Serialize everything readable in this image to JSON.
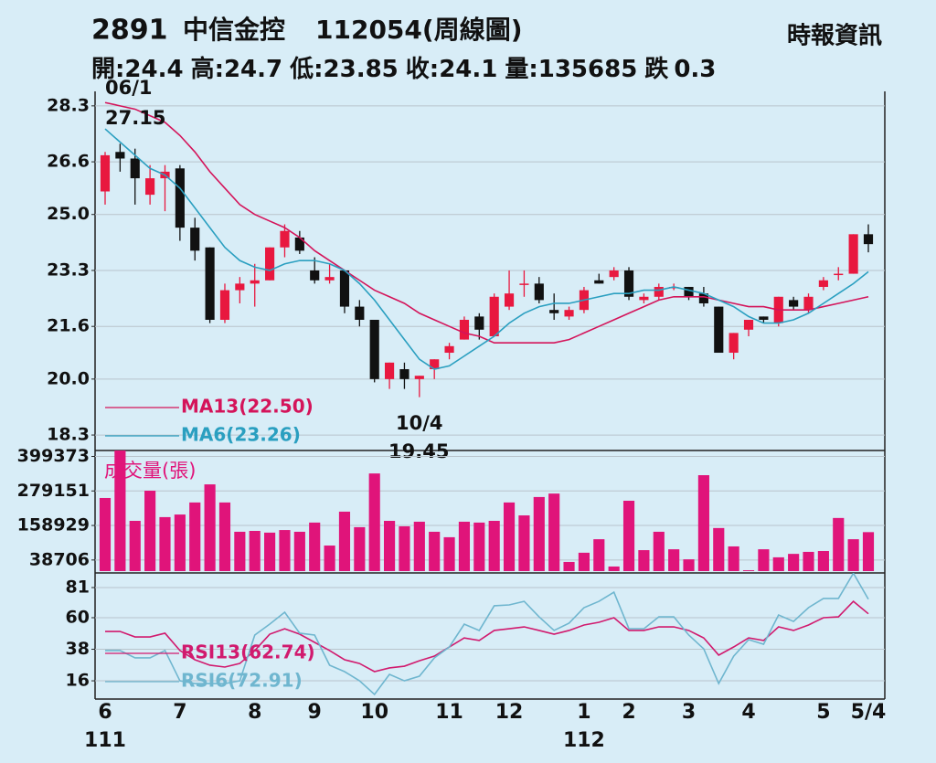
{
  "header": {
    "code": "2891",
    "name": "中信金控",
    "title": "112054(周線圖)",
    "source": "時報資訊",
    "quote": [
      {
        "label": "開:",
        "value": 24.4
      },
      {
        "label": "高:",
        "value": 24.7
      },
      {
        "label": "低:",
        "value": 23.85
      },
      {
        "label": "收:",
        "value": 24.1
      },
      {
        "label": "量:",
        "value": 135685
      },
      {
        "label": "跌",
        "value": 0.3
      }
    ]
  },
  "chart_data": [
    {
      "type": "candlestick",
      "up_color": "#e8183f",
      "down_color": "#111111",
      "open": [
        25.7,
        26.9,
        26.7,
        25.6,
        26.1,
        26.4,
        24.6,
        24.0,
        21.8,
        22.7,
        22.9,
        23.0,
        24.0,
        24.3,
        23.3,
        23.0,
        23.3,
        22.2,
        21.8,
        20.0,
        20.3,
        20.0,
        20.3,
        20.8,
        21.2,
        21.9,
        21.3,
        22.2,
        22.9,
        22.9,
        22.1,
        21.9,
        22.1,
        23.0,
        23.1,
        23.3,
        22.4,
        22.5,
        22.8,
        22.8,
        22.6,
        22.2,
        20.8,
        21.5,
        21.9,
        21.7,
        22.4,
        22.1,
        22.8,
        23.2,
        23.2,
        24.4
      ],
      "high": [
        26.9,
        27.15,
        27.0,
        26.5,
        26.5,
        26.5,
        24.9,
        24.0,
        22.9,
        23.1,
        23.5,
        24.0,
        24.7,
        24.5,
        23.7,
        23.5,
        23.3,
        22.4,
        21.8,
        20.5,
        20.5,
        20.1,
        20.6,
        21.1,
        21.9,
        22.0,
        22.6,
        23.3,
        23.3,
        23.1,
        22.6,
        22.2,
        22.8,
        23.2,
        23.4,
        23.4,
        22.6,
        22.9,
        22.9,
        22.8,
        22.8,
        22.2,
        21.4,
        21.8,
        21.9,
        22.5,
        22.5,
        22.6,
        23.1,
        23.4,
        24.4,
        24.7
      ],
      "low": [
        25.3,
        26.3,
        25.3,
        25.3,
        25.1,
        24.2,
        23.6,
        21.7,
        21.7,
        22.3,
        22.2,
        23.0,
        23.7,
        23.8,
        22.9,
        22.9,
        22.0,
        21.6,
        19.9,
        19.7,
        19.7,
        19.45,
        20.0,
        20.6,
        21.2,
        21.2,
        21.3,
        22.1,
        22.5,
        22.3,
        21.8,
        21.8,
        22.0,
        22.9,
        23.0,
        22.4,
        22.3,
        22.4,
        22.7,
        22.4,
        22.2,
        20.8,
        20.6,
        21.3,
        21.7,
        21.6,
        22.1,
        22.0,
        22.7,
        23.0,
        23.2,
        23.85
      ],
      "close": [
        26.8,
        26.7,
        26.1,
        26.1,
        26.3,
        24.6,
        23.9,
        21.8,
        22.7,
        22.9,
        23.0,
        24.0,
        24.5,
        23.9,
        23.0,
        23.1,
        22.2,
        21.8,
        20.0,
        20.5,
        20.0,
        20.1,
        20.6,
        21.0,
        21.8,
        21.5,
        22.5,
        22.6,
        22.9,
        22.4,
        22.0,
        22.1,
        22.7,
        22.9,
        23.3,
        22.5,
        22.5,
        22.8,
        22.8,
        22.5,
        22.3,
        20.8,
        21.4,
        21.8,
        21.8,
        22.5,
        22.2,
        22.5,
        23.0,
        23.2,
        24.4,
        24.1
      ],
      "series": [
        {
          "name": "MA13(22.50)",
          "color": "#d4145a",
          "values": [
            28.4,
            28.3,
            28.2,
            28.0,
            27.8,
            27.4,
            26.9,
            26.3,
            25.8,
            25.3,
            25.0,
            24.8,
            24.6,
            24.3,
            23.9,
            23.6,
            23.3,
            23.0,
            22.7,
            22.5,
            22.3,
            22.0,
            21.8,
            21.6,
            21.4,
            21.3,
            21.1,
            21.1,
            21.1,
            21.1,
            21.1,
            21.2,
            21.4,
            21.6,
            21.8,
            22.0,
            22.2,
            22.4,
            22.5,
            22.5,
            22.5,
            22.4,
            22.3,
            22.2,
            22.2,
            22.1,
            22.1,
            22.1,
            22.2,
            22.3,
            22.4,
            22.5
          ]
        },
        {
          "name": "MA6(23.26)",
          "color": "#2a9fc0",
          "values": [
            27.6,
            27.2,
            26.8,
            26.4,
            26.2,
            25.8,
            25.2,
            24.6,
            24.0,
            23.6,
            23.4,
            23.3,
            23.5,
            23.6,
            23.6,
            23.5,
            23.3,
            22.9,
            22.4,
            21.8,
            21.2,
            20.6,
            20.3,
            20.4,
            20.7,
            21.0,
            21.3,
            21.7,
            22.0,
            22.2,
            22.3,
            22.3,
            22.4,
            22.5,
            22.6,
            22.6,
            22.7,
            22.7,
            22.8,
            22.7,
            22.6,
            22.4,
            22.2,
            21.9,
            21.7,
            21.7,
            21.8,
            22.0,
            22.3,
            22.6,
            22.9,
            23.26
          ]
        }
      ],
      "annotations": [
        {
          "date": "06/1",
          "value": 27.15
        },
        {
          "date": "10/4",
          "value": 19.45
        }
      ],
      "ylim": [
        17.83,
        28.74
      ],
      "yticks": [
        28.3,
        26.6,
        {
          "value": 25,
          "label": "25.0"
        },
        23.3,
        21.6,
        {
          "value": 20,
          "label": "20.0"
        },
        18.3
      ],
      "grid": true
    },
    {
      "type": "bar",
      "title": "成交量(張)",
      "color": "#e0147a",
      "values": [
        254600,
        430000,
        175000,
        280000,
        188000,
        197000,
        239000,
        302000,
        239000,
        137000,
        140000,
        134000,
        143000,
        137000,
        169000,
        89000,
        207000,
        153000,
        340000,
        175000,
        156000,
        172000,
        137000,
        118000,
        172000,
        169000,
        175000,
        239000,
        194000,
        258000,
        270000,
        32000,
        64000,
        111000,
        16000,
        245000,
        73000,
        137000,
        76000,
        41000,
        334000,
        150000,
        86000,
        3000,
        76000,
        48000,
        60000,
        67000,
        70000,
        185000,
        111000,
        135685
      ],
      "ylim": [
        0,
        420000
      ],
      "yticks": [
        399373,
        279151,
        158929,
        38706
      ],
      "grid": true
    },
    {
      "type": "line",
      "categories": [
        "6",
        null,
        null,
        null,
        null,
        "7",
        null,
        null,
        null,
        null,
        "8",
        null,
        null,
        null,
        "9",
        null,
        null,
        null,
        "10",
        null,
        null,
        null,
        null,
        "11",
        null,
        null,
        null,
        "12",
        null,
        null,
        null,
        null,
        "1",
        null,
        null,
        "2",
        null,
        null,
        null,
        "3",
        null,
        null,
        null,
        "4",
        null,
        null,
        null,
        null,
        "5",
        null,
        null,
        "5/4"
      ],
      "year_categories": [
        "111",
        null,
        null,
        null,
        null,
        null,
        null,
        null,
        null,
        null,
        null,
        null,
        null,
        null,
        null,
        null,
        null,
        null,
        null,
        null,
        null,
        null,
        null,
        null,
        null,
        null,
        null,
        null,
        null,
        null,
        null,
        null,
        "112",
        null,
        null,
        null,
        null,
        null,
        null,
        null,
        null,
        null,
        null,
        null,
        null,
        null,
        null,
        null,
        null,
        null,
        null,
        null
      ],
      "series": [
        {
          "name": "RSI13(62.74)",
          "color": "#d11a6e",
          "values": [
            50.4,
            50.4,
            46.6,
            46.6,
            49.2,
            37.1,
            30.7,
            26.9,
            25.6,
            28.1,
            37.1,
            48.5,
            52.3,
            48.5,
            42.8,
            37.1,
            30.7,
            28.1,
            22.4,
            25.0,
            26.2,
            30.0,
            33.2,
            39.6,
            45.9,
            44.1,
            51.1,
            52.3,
            53.6,
            51.1,
            48.5,
            51.1,
            54.9,
            56.8,
            60.0,
            51.1,
            51.1,
            53.6,
            53.6,
            51.1,
            45.9,
            33.9,
            39.6,
            45.9,
            44.1,
            53.6,
            51.1,
            54.9,
            60.0,
            60.6,
            71.4,
            62.74
          ]
        },
        {
          "name": "RSI6(72.91)",
          "color": "#6fb6cf",
          "values": [
            37.1,
            37.1,
            32.0,
            32.0,
            37.1,
            16.0,
            14.1,
            14.1,
            14.1,
            16.0,
            47.9,
            55.5,
            63.8,
            49.2,
            47.9,
            26.9,
            22.4,
            16.0,
            6.5,
            20.5,
            16.0,
            19.2,
            32.0,
            39.6,
            55.5,
            51.1,
            68.3,
            68.9,
            71.4,
            60.6,
            51.1,
            56.2,
            67.0,
            71.4,
            77.8,
            52.3,
            52.3,
            60.6,
            60.6,
            47.9,
            38.3,
            14.1,
            33.2,
            44.7,
            41.5,
            61.9,
            57.4,
            67.0,
            73.4,
            73.4,
            91.0,
            72.91
          ]
        }
      ],
      "ylim": [
        3.3,
        91.2
      ],
      "yticks": [
        81,
        60,
        38,
        16
      ],
      "grid": true
    }
  ]
}
